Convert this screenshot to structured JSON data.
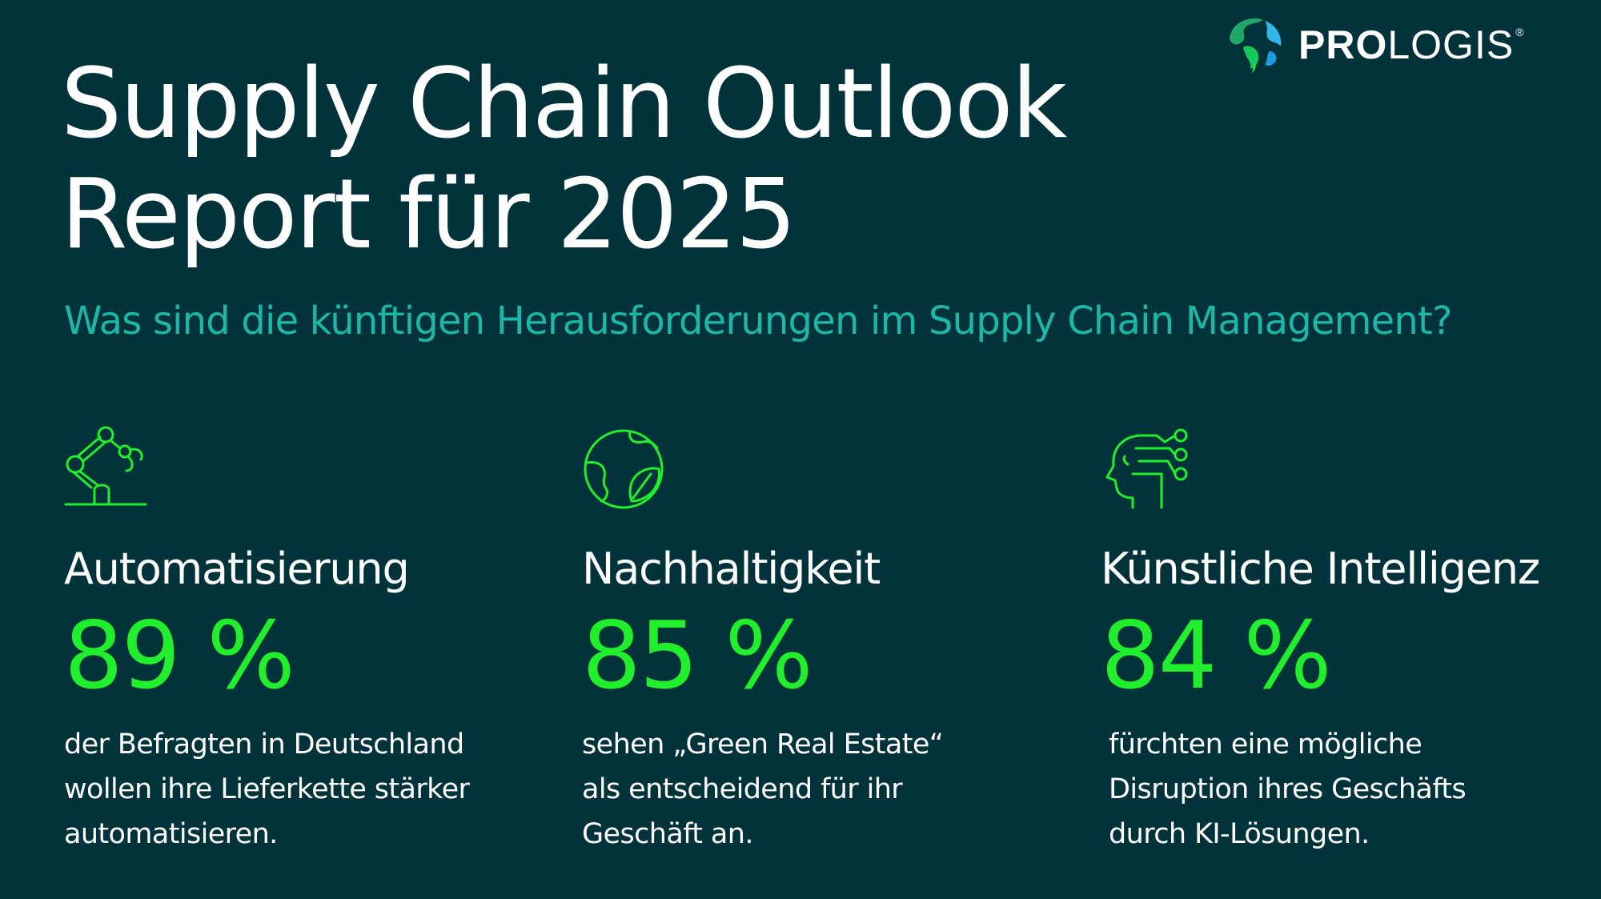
{
  "brand": {
    "name_bold": "PRO",
    "name_regular": "LOGIS",
    "registered": "®",
    "colors": {
      "background": "#02333b",
      "accent_green": "#21ee2c",
      "subtitle_teal": "#1cb7a6",
      "text": "#ffffff"
    }
  },
  "title": {
    "line1": "Supply Chain Outlook",
    "line2": "Report für 2025"
  },
  "subtitle": "Was sind die künftigen Herausforderungen im Supply Chain Management?",
  "stats": [
    {
      "icon": "robot-arm-icon",
      "heading": "Automatisierung",
      "value": "89 %",
      "description": [
        "der Befragten in Deutschland",
        "wollen ihre Lieferkette stärker",
        "automatisieren."
      ]
    },
    {
      "icon": "globe-leaf-icon",
      "heading": "Nachhaltigkeit",
      "value": "85 %",
      "description": [
        "sehen „Green Real Estate“",
        "als entscheidend für ihr",
        "Geschäft an."
      ]
    },
    {
      "icon": "ai-head-icon",
      "heading": "Künstliche Intelligenz",
      "value": "84 %",
      "description": [
        "fürchten eine mögliche",
        "Disruption ihres Geschäfts",
        "durch KI-Lösungen."
      ]
    }
  ]
}
